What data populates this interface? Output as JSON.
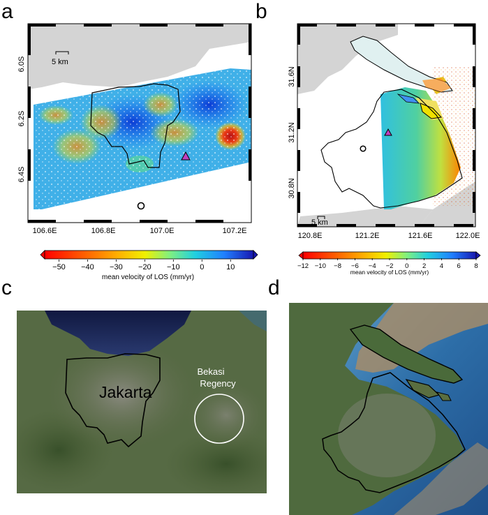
{
  "panels": {
    "a": {
      "letter": "a",
      "lon_ticks": [
        "106.6E",
        "106.8E",
        "107.0E",
        "107.2E"
      ],
      "lat_ticks": [
        "6.0S",
        "6.2S",
        "6.4S"
      ],
      "scalebar": "5 km",
      "colorbar": {
        "ticks": [
          "−50",
          "−40",
          "−30",
          "−20",
          "−10",
          "0",
          "10"
        ],
        "label": "mean velocity of LOS (mm/yr)",
        "min": -55,
        "max": 18
      }
    },
    "b": {
      "letter": "b",
      "lon_ticks": [
        "120.8E",
        "121.2E",
        "121.6E",
        "122.0E"
      ],
      "lat_ticks": [
        "31.6N",
        "31.2N",
        "30.8N"
      ],
      "scalebar": "5 km",
      "colorbar": {
        "ticks": [
          "−12",
          "−10",
          "−8",
          "−6",
          "−4",
          "−2",
          "0",
          "2",
          "4",
          "6",
          "8"
        ],
        "label": "mean velocity of LOS (mm/yr)",
        "min": -12,
        "max": 8
      }
    },
    "c": {
      "letter": "c",
      "city_label": "Jakarta",
      "region_label_line1": "Bekasi",
      "region_label_line2": "Regency"
    },
    "d": {
      "letter": "d"
    }
  },
  "colors": {
    "land_gray": "#d4d4d4",
    "triangle": "#c040c0",
    "circle_annotation": "#ffffff"
  }
}
